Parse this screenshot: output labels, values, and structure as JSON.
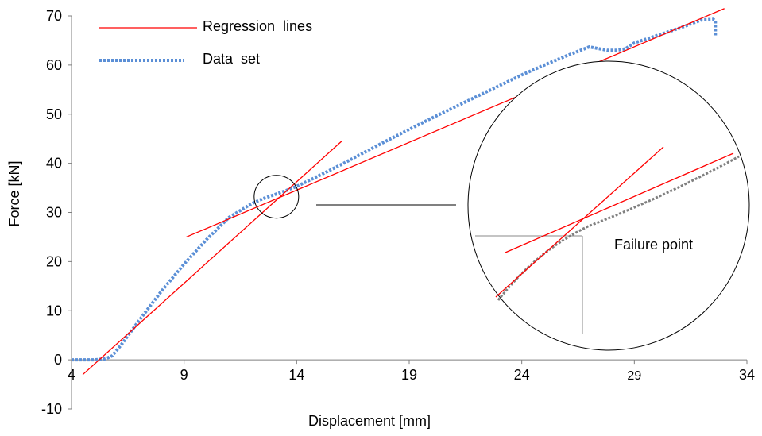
{
  "chart_data": {
    "type": "line",
    "xlabel": "Displacement [mm]",
    "ylabel": "Force [kN]",
    "xlim": [
      4,
      34
    ],
    "ylim": [
      -10,
      70
    ],
    "x_ticks": [
      4,
      9,
      14,
      19,
      24,
      29,
      34
    ],
    "y_ticks": [
      -10,
      0,
      10,
      20,
      30,
      40,
      50,
      60,
      70
    ],
    "legend": [
      {
        "label": "Regression  lines",
        "color": "#ff0000",
        "style": "solid"
      },
      {
        "label": "Data  set",
        "color": "#5b8fd6",
        "style": "dotted"
      }
    ],
    "series": [
      {
        "name": "Data  set",
        "color": "#5b8fd6",
        "x": [
          4.0,
          5.0,
          5.5,
          5.8,
          6.2,
          7.0,
          8.0,
          9.0,
          10.0,
          11.0,
          12.0,
          12.5,
          13.0,
          13.5,
          14.0,
          15.0,
          16.0,
          17.0,
          18.0,
          19.0,
          20.0,
          21.0,
          22.0,
          23.0,
          24.0,
          25.0,
          26.0,
          27.0,
          27.8,
          28.2,
          28.6,
          29.0,
          30.0,
          31.0,
          32.0,
          32.5,
          32.6,
          32.6
        ],
        "y": [
          0.0,
          0.0,
          0.2,
          0.8,
          3.0,
          8.0,
          14.0,
          19.5,
          24.5,
          29.0,
          31.8,
          32.8,
          33.6,
          34.4,
          35.3,
          37.5,
          39.8,
          42.2,
          44.6,
          46.9,
          49.2,
          51.4,
          53.6,
          55.8,
          58.0,
          60.0,
          61.9,
          63.7,
          63.0,
          63.0,
          63.3,
          64.5,
          66.0,
          67.5,
          69.2,
          69.3,
          69.0,
          66.0
        ]
      }
    ],
    "regression_lines": [
      {
        "x": [
          4.5,
          16.0
        ],
        "y": [
          -3.0,
          44.5
        ],
        "color": "#ff0000"
      },
      {
        "x": [
          9.1,
          33.0
        ],
        "y": [
          25.0,
          71.5
        ],
        "color": "#ff0000"
      }
    ],
    "annotation": {
      "label": "Failure point",
      "focus_point": {
        "x": 13.1,
        "y": 33.2
      }
    }
  }
}
